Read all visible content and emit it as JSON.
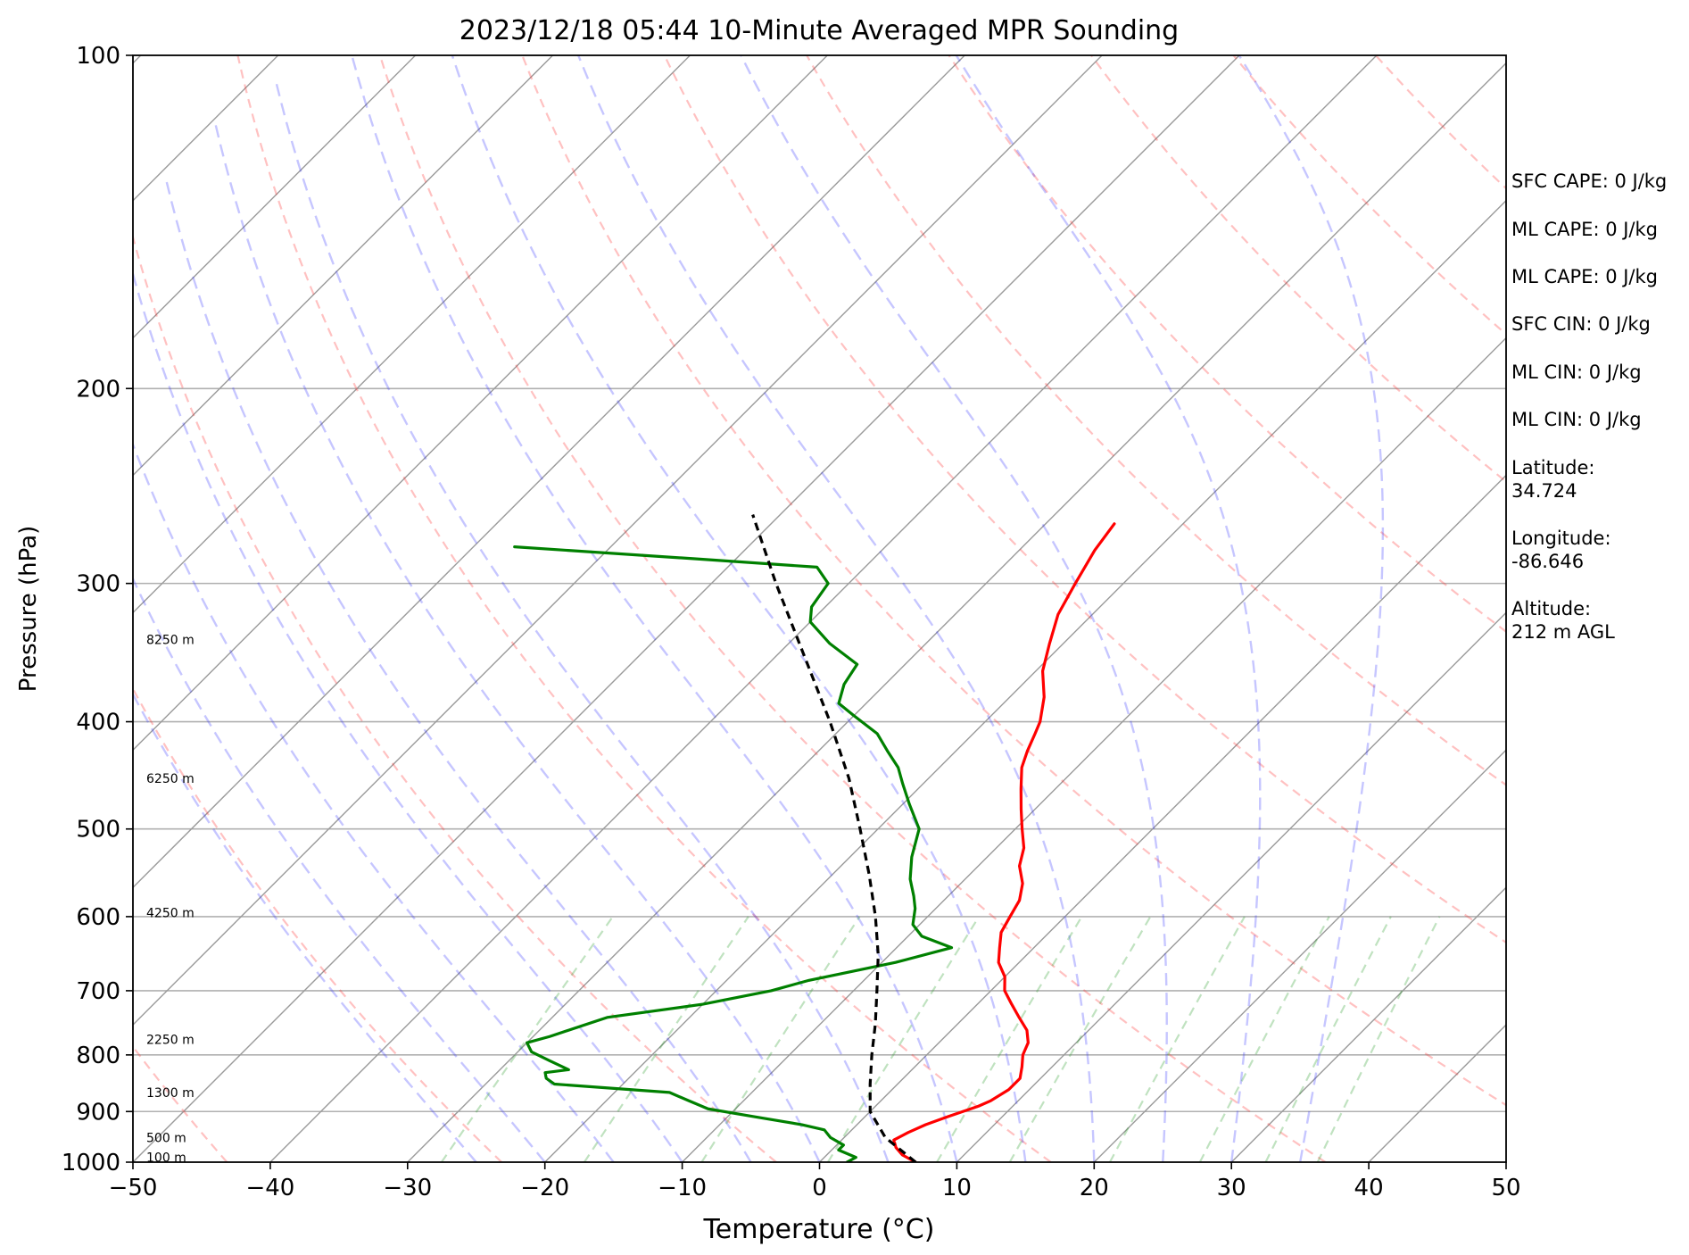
{
  "chart_data": {
    "type": "line",
    "title": "2023/12/18 05:44 10-Minute Averaged MPR Sounding",
    "xlabel": "Temperature (°C)",
    "ylabel": "Pressure (hPa)",
    "xlim": [
      -50,
      50
    ],
    "ylim": [
      1000,
      100
    ],
    "y_scale": "log",
    "skew": true,
    "grid": true,
    "x_ticks": [
      -50,
      -40,
      -30,
      -20,
      -10,
      0,
      10,
      20,
      30,
      40,
      50
    ],
    "x_tick_labels": [
      "−50",
      "−40",
      "−30",
      "−20",
      "−10",
      "0",
      "10",
      "20",
      "30",
      "40",
      "50"
    ],
    "y_ticks": [
      100,
      200,
      300,
      400,
      500,
      600,
      700,
      800,
      900,
      1000
    ],
    "y_tick_labels": [
      "100",
      "200",
      "300",
      "400",
      "500",
      "600",
      "700",
      "800",
      "900",
      "1000"
    ],
    "height_labels": [
      {
        "p": 990,
        "label": "100 m"
      },
      {
        "p": 950,
        "label": "500 m"
      },
      {
        "p": 865,
        "label": "1300 m"
      },
      {
        "p": 775,
        "label": "2250 m"
      },
      {
        "p": 595,
        "label": "4250 m"
      },
      {
        "p": 450,
        "label": "6250 m"
      },
      {
        "p": 337,
        "label": "8250 m"
      }
    ],
    "series": [
      {
        "role": "temperature",
        "color": "#ff0000",
        "points": [
          [
            1000,
            7.0
          ],
          [
            985,
            5.5
          ],
          [
            970,
            4.5
          ],
          [
            955,
            3.8
          ],
          [
            940,
            4.3
          ],
          [
            925,
            5.0
          ],
          [
            910,
            6.0
          ],
          [
            890,
            7.5
          ],
          [
            880,
            8.0
          ],
          [
            860,
            8.5
          ],
          [
            840,
            8.5
          ],
          [
            820,
            7.8
          ],
          [
            800,
            7.0
          ],
          [
            780,
            6.5
          ],
          [
            760,
            5.5
          ],
          [
            740,
            4.0
          ],
          [
            720,
            2.5
          ],
          [
            700,
            1.0
          ],
          [
            680,
            0
          ],
          [
            660,
            -1.5
          ],
          [
            640,
            -2.5
          ],
          [
            620,
            -3.5
          ],
          [
            600,
            -4.0
          ],
          [
            580,
            -4.5
          ],
          [
            560,
            -5.5
          ],
          [
            540,
            -7.0
          ],
          [
            520,
            -8.0
          ],
          [
            500,
            -9.5
          ],
          [
            480,
            -11.0
          ],
          [
            460,
            -12.5
          ],
          [
            440,
            -14.0
          ],
          [
            425,
            -14.8
          ],
          [
            410,
            -15.5
          ],
          [
            400,
            -16.0
          ],
          [
            380,
            -17.5
          ],
          [
            360,
            -19.5
          ],
          [
            340,
            -21.0
          ],
          [
            320,
            -22.5
          ],
          [
            300,
            -23.5
          ],
          [
            280,
            -24.5
          ],
          [
            265,
            -25.0
          ]
        ]
      },
      {
        "role": "dewpoint",
        "color": "#008000",
        "points": [
          [
            1000,
            2.0
          ],
          [
            990,
            2.3
          ],
          [
            975,
            0.5
          ],
          [
            965,
            0.5
          ],
          [
            950,
            -1.0
          ],
          [
            935,
            -2.0
          ],
          [
            925,
            -4.0
          ],
          [
            910,
            -8.0
          ],
          [
            895,
            -12.0
          ],
          [
            880,
            -14.0
          ],
          [
            865,
            -16.0
          ],
          [
            850,
            -25.0
          ],
          [
            840,
            -26.0
          ],
          [
            830,
            -26.5
          ],
          [
            825,
            -25.0
          ],
          [
            810,
            -27.0
          ],
          [
            795,
            -29.0
          ],
          [
            780,
            -30.0
          ],
          [
            770,
            -28.8
          ],
          [
            740,
            -26.0
          ],
          [
            720,
            -20.0
          ],
          [
            700,
            -16.0
          ],
          [
            685,
            -14.0
          ],
          [
            660,
            -9.0
          ],
          [
            640,
            -6.0
          ],
          [
            625,
            -9.0
          ],
          [
            610,
            -10.5
          ],
          [
            590,
            -11.5
          ],
          [
            575,
            -12.5
          ],
          [
            555,
            -14.0
          ],
          [
            530,
            -15.5
          ],
          [
            500,
            -17.0
          ],
          [
            475,
            -19.5
          ],
          [
            455,
            -21.5
          ],
          [
            440,
            -23.0
          ],
          [
            425,
            -25.0
          ],
          [
            410,
            -27.0
          ],
          [
            395,
            -30.0
          ],
          [
            385,
            -32.0
          ],
          [
            370,
            -33.0
          ],
          [
            355,
            -33.5
          ],
          [
            340,
            -37.0
          ],
          [
            325,
            -40.0
          ],
          [
            315,
            -41.0
          ],
          [
            300,
            -41.5
          ],
          [
            290,
            -43.5
          ],
          [
            285,
            -53.0
          ],
          [
            278,
            -67.0
          ]
        ]
      },
      {
        "role": "parcel",
        "color": "#000000",
        "dashed": true,
        "points": [
          [
            1000,
            7.0
          ],
          [
            950,
            3.0
          ],
          [
            900,
            0.0
          ],
          [
            850,
            -2.0
          ],
          [
            800,
            -4.0
          ],
          [
            750,
            -6.0
          ],
          [
            700,
            -8.3
          ],
          [
            650,
            -10.8
          ],
          [
            600,
            -13.8
          ],
          [
            550,
            -17.3
          ],
          [
            500,
            -21.3
          ],
          [
            450,
            -25.8
          ],
          [
            400,
            -31.3
          ],
          [
            350,
            -37.8
          ],
          [
            300,
            -45.3
          ],
          [
            260,
            -52.0
          ]
        ]
      }
    ],
    "dry_adiabats_theta_K": [
      230,
      250,
      270,
      290,
      310,
      330,
      350,
      370,
      390,
      410,
      430,
      450,
      470,
      490,
      510,
      530
    ],
    "moist_adiabats_start_C": [
      -25,
      -20,
      -15,
      -10,
      -5,
      0,
      5,
      10,
      15,
      20,
      25,
      30,
      35
    ],
    "mixing_ratios_gkg": [
      0.4,
      1,
      2,
      4,
      7,
      10,
      16,
      24,
      32,
      40
    ],
    "annotations": [
      "SFC CAPE: 0 J/kg",
      "ML CAPE: 0 J/kg",
      "ML CAPE: 0 J/kg",
      "SFC CIN: 0 J/kg",
      "ML CIN: 0 J/kg",
      "ML CIN: 0 J/kg",
      "Latitude:\n34.724",
      "Longitude:\n-86.646",
      "Altitude:\n212 m AGL"
    ]
  }
}
